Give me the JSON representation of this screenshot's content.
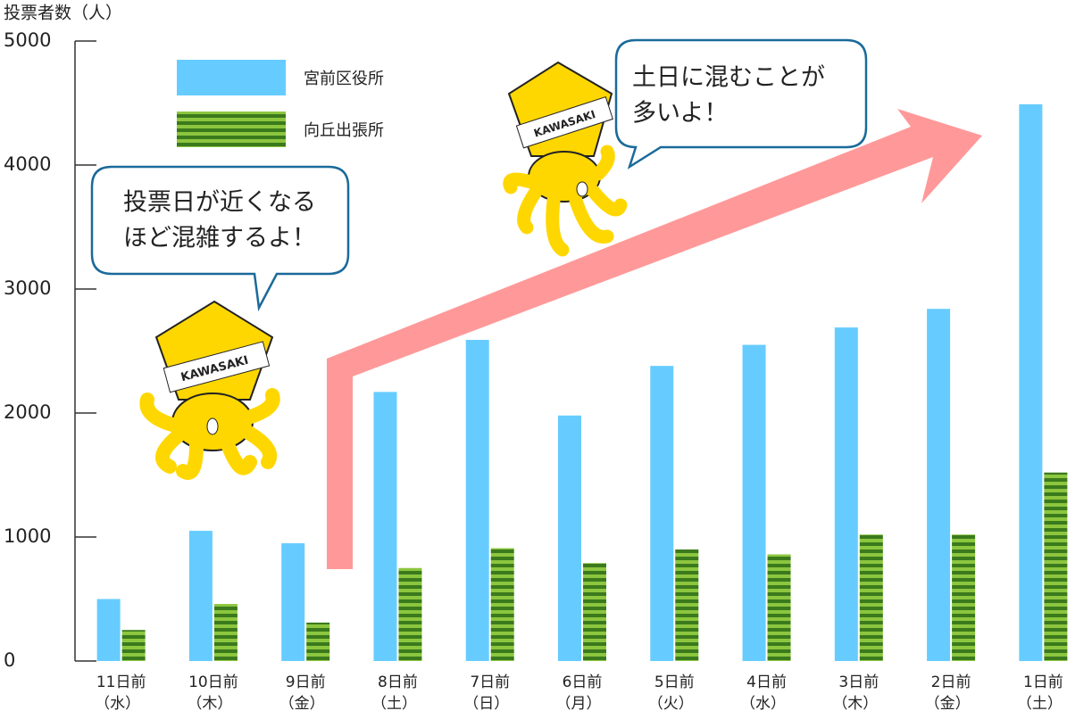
{
  "chart_data": {
    "type": "bar",
    "y_label": "投票者数（人）",
    "categories": [
      "11日前",
      "10日前",
      "9日前",
      "8日前",
      "7日前",
      "6日前",
      "5日前",
      "4日前",
      "3日前",
      "2日前",
      "1日前"
    ],
    "weekdays": [
      "（水）",
      "（木）",
      "（金）",
      "（土）",
      "（日）",
      "（月）",
      "（火）",
      "（水）",
      "（木）",
      "（金）",
      "（土）"
    ],
    "series": [
      {
        "name": "宮前区役所",
        "color": "#66ccff",
        "values": [
          500,
          1050,
          950,
          2170,
          2590,
          1980,
          2380,
          2550,
          2690,
          2840,
          4490
        ]
      },
      {
        "name": "向丘出張所",
        "color": "#7dbb3a",
        "values": [
          250,
          460,
          310,
          750,
          910,
          790,
          900,
          860,
          1020,
          1020,
          1520
        ]
      }
    ],
    "ylim": [
      0,
      5000
    ],
    "yticks": [
      0,
      1000,
      2000,
      3000,
      4000,
      5000
    ],
    "annotations": [
      [
        "投票日が近くなる",
        "ほど混雑するよ！"
      ],
      [
        "土日に混むことが",
        "多いよ！"
      ]
    ],
    "mascot_label": "KAWASAKI"
  }
}
